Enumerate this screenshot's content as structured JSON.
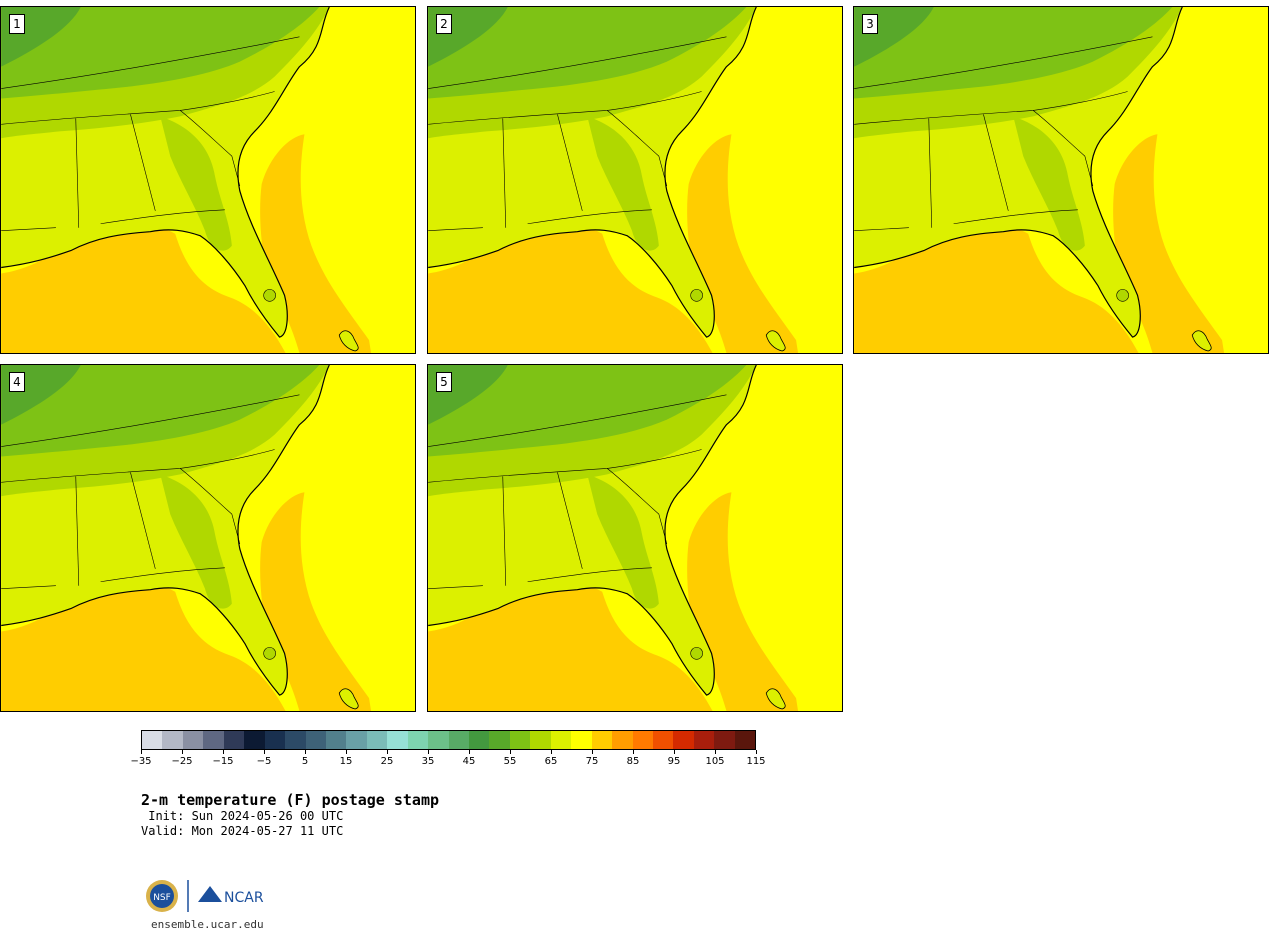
{
  "panels": [
    {
      "label": "1"
    },
    {
      "label": "2"
    },
    {
      "label": "3"
    },
    {
      "label": "4"
    },
    {
      "label": "5"
    }
  ],
  "colorbar": {
    "colors": [
      "#d9dde6",
      "#b3b8c6",
      "#8a90a3",
      "#5f6882",
      "#2f3a57",
      "#0c1a33",
      "#19304f",
      "#2c4a66",
      "#3e6278",
      "#52808c",
      "#69a0a6",
      "#7bbcb8",
      "#96e0d6",
      "#7ed4b0",
      "#6cc089",
      "#58ab66",
      "#43993f",
      "#58a82a",
      "#7ec215",
      "#b0d800",
      "#dcf000",
      "#ffff00",
      "#ffcd00",
      "#ff9e00",
      "#ff7a00",
      "#f05000",
      "#d42a00",
      "#a81e0c",
      "#7e1a10",
      "#5a160c"
    ],
    "tick_labels": [
      "−35",
      "−25",
      "−15",
      "−5",
      "5",
      "15",
      "25",
      "35",
      "45",
      "55",
      "65",
      "75",
      "85",
      "95",
      "105",
      "115"
    ]
  },
  "title": "2-m temperature (F) postage stamp",
  "init": " Init: Sun 2024-05-26 00 UTC",
  "valid": "Valid: Mon 2024-05-27 11 UTC",
  "logos": {
    "left": "NSF",
    "right": "NCAR"
  },
  "url": "ensemble.ucar.edu",
  "map_colors": {
    "ocean_warm": "#ffcd00",
    "ocean_cool": "#ffff00",
    "land_warm": "#dcf000",
    "land_mid": "#b0d800",
    "land_cool": "#7ec215",
    "land_cold": "#58a82a"
  }
}
